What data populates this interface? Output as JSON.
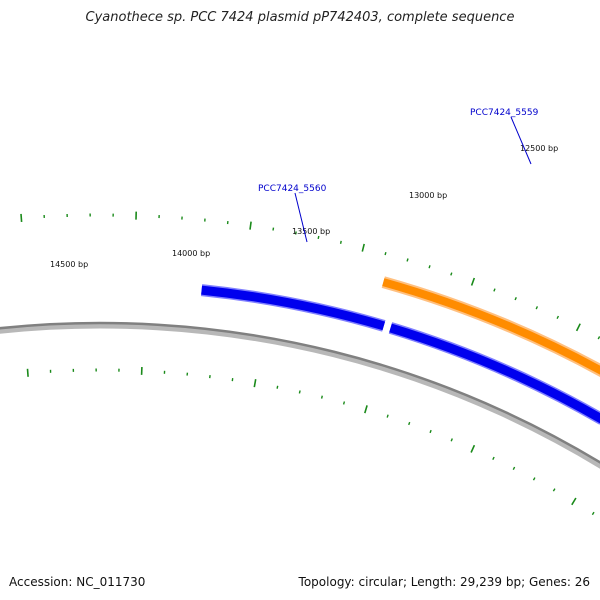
{
  "title": "Cyanothece sp. PCC 7424 plasmid pP742403, complete sequence",
  "footer": {
    "accession": "Accession: NC_011730",
    "stats": "Topology: circular; Length: 29,239 bp; Genes: 26"
  },
  "map": {
    "position_labels": [
      "12500 bp",
      "13000 bp",
      "13500 bp",
      "14000 bp",
      "14500 bp"
    ],
    "genes": [
      {
        "name": "PCC7424_5559",
        "color": "#ff8c00",
        "strand": "forward"
      },
      {
        "name": "PCC7424_5560",
        "color": "#0000ee",
        "strand": "reverse"
      }
    ],
    "colors": {
      "backbone": "#808080",
      "tick": "#1a8a1a",
      "forward_cds": "#ff8c00",
      "reverse_cds": "#0000ee",
      "label": "#0000cc"
    }
  }
}
